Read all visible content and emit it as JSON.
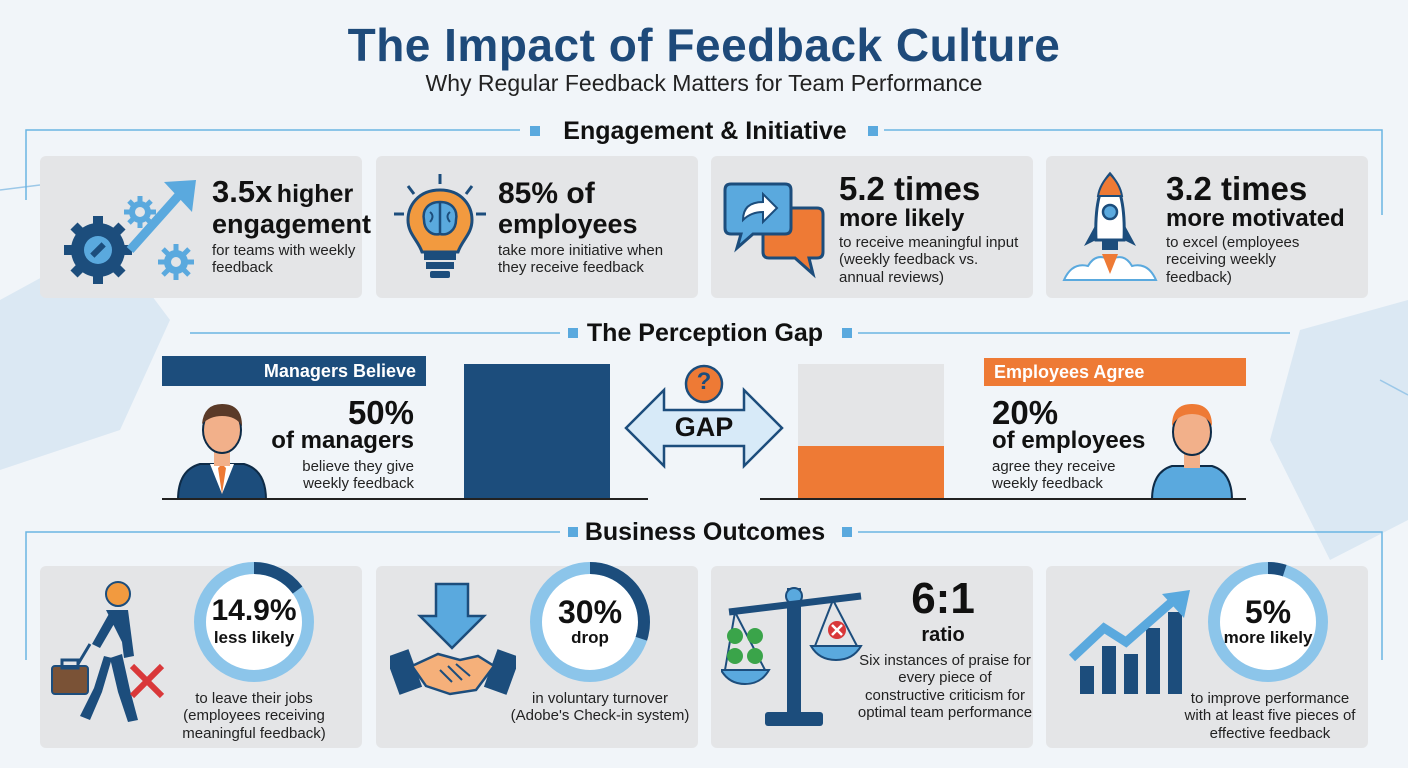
{
  "header": {
    "title": "The Impact of Feedback Culture",
    "subtitle": "Why Regular Feedback Matters for Team Performance"
  },
  "sections": {
    "engagement": "Engagement & Initiative",
    "perception": "The Perception Gap",
    "outcomes": "Business Outcomes"
  },
  "engagement_cards": [
    {
      "icon": "gears-arrow-icon",
      "stat": "3.5x",
      "stat_suffix": "higher",
      "headline": "engagement",
      "desc": "for teams with weekly feedback"
    },
    {
      "icon": "lightbulb-brain-icon",
      "stat": "85% of",
      "headline": "employees",
      "desc": "take more initiative when they receive feedback"
    },
    {
      "icon": "chat-bubbles-icon",
      "stat": "5.2 times",
      "headline": "more likely",
      "desc": "to receive meaningful input (weekly feedback vs. annual reviews)"
    },
    {
      "icon": "rocket-icon",
      "stat": "3.2 times",
      "headline": "more motivated",
      "desc": "to excel (employees receiving weekly feedback)"
    }
  ],
  "perception_gap": {
    "managers": {
      "label": "Managers Believe",
      "stat": "50%",
      "headline": "of managers",
      "desc": "believe they give weekly feedback",
      "value": 50
    },
    "employees": {
      "label": "Employees Agree",
      "stat": "20%",
      "headline": "of employees",
      "desc": "agree they receive weekly feedback",
      "value": 20
    },
    "gap_label": "GAP",
    "gap_symbol": "?"
  },
  "outcome_cards": [
    {
      "icon": "walking-away-icon",
      "stat": "14.9%",
      "unit": "less likely",
      "desc": "to leave their jobs (employees receiving meaningful feedback)",
      "ring": 0.149
    },
    {
      "icon": "handshake-icon",
      "stat": "30%",
      "unit": "drop",
      "desc": "in voluntary turnover (Adobe's Check-in system)",
      "ring": 0.3
    },
    {
      "icon": "scale-icon",
      "stat": "6:1",
      "unit": "ratio",
      "desc": "Six instances of praise for every piece of constructive criticism for optimal team performance"
    },
    {
      "icon": "growth-chart-icon",
      "stat": "5%",
      "unit": "more likely",
      "desc": "to improve performance with at least five pieces of effective feedback",
      "ring": 0.05
    }
  ],
  "colors": {
    "navy": "#1c4d7c",
    "orange": "#ee7a35",
    "light_blue": "#5aa9de",
    "card": "#e4e5e7"
  }
}
